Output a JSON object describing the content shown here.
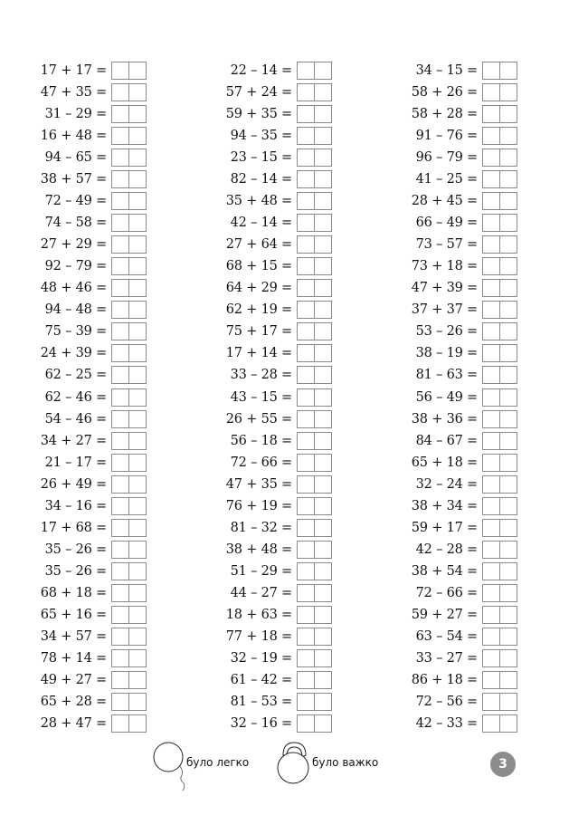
{
  "columns": [
    [
      "17 + 17 =",
      "47 + 35 =",
      "31 – 29 =",
      "16 + 48 =",
      "94 – 65 =",
      "38 + 57 =",
      "72 – 49 =",
      "74 – 58 =",
      "27 + 29 =",
      "92 – 79 =",
      "48 + 46 =",
      "94 – 48 =",
      "75 – 39 =",
      "24 + 39 =",
      "62 – 25 =",
      "62 – 46 =",
      "54 – 46 =",
      "34 + 27 =",
      "21 – 17 =",
      "26 + 49 =",
      "34 – 16 =",
      "17 + 68 =",
      "35 – 26 =",
      "35 – 26 =",
      "68 + 18 =",
      "65 + 16 =",
      "34 + 57 =",
      "78 + 14 =",
      "49 + 27 =",
      "65 + 28 =",
      "28 + 47 ="
    ],
    [
      "22 – 14 =",
      "57 + 24 =",
      "59 + 35 =",
      "94 – 35 =",
      "23 – 15 =",
      "82 – 14 =",
      "35 + 48 =",
      "42 – 14 =",
      "27 + 64 =",
      "68 + 15 =",
      "64 + 29 =",
      "62 + 19 =",
      "75 + 17 =",
      "17 + 14 =",
      "33 – 28 =",
      "43 – 15 =",
      "26 + 55 =",
      "56 – 18 =",
      "72 – 66 =",
      "47 + 35 =",
      "76 + 19 =",
      "81 – 32 =",
      "38 + 48 =",
      "51 – 29 =",
      "44 – 27 =",
      "18 + 63 =",
      "77 + 18 =",
      "32 – 19 =",
      "61 – 42 =",
      "81 – 53 =",
      "32 – 16 ="
    ],
    [
      "34 – 15 =",
      "58 + 26 =",
      "58 + 28 =",
      "91 – 76 =",
      "96 – 79 =",
      "41 – 25 =",
      "28 + 45 =",
      "66 – 49 =",
      "73 – 57 =",
      "73 + 18 =",
      "47 + 39 =",
      "37 + 37 =",
      "53 – 26 =",
      "38 – 19 =",
      "81 – 63 =",
      "56 – 49 =",
      "38 + 36 =",
      "84 – 67 =",
      "65 + 18 =",
      "32 – 24 =",
      "38 + 34 =",
      "59 + 17 =",
      "42 – 28 =",
      "38 + 54 =",
      "72 – 66 =",
      "59 + 27 =",
      "63 – 54 =",
      "33 – 27 =",
      "86 + 18 =",
      "72 – 56 =",
      "42 – 33 ="
    ]
  ],
  "footer": {
    "easy_label": "було легко",
    "easy_icon": "balloon-icon",
    "hard_label": "було важко",
    "hard_icon": "kettlebell-icon",
    "page_number": "3",
    "page_number_color": "#8c8c8c"
  }
}
